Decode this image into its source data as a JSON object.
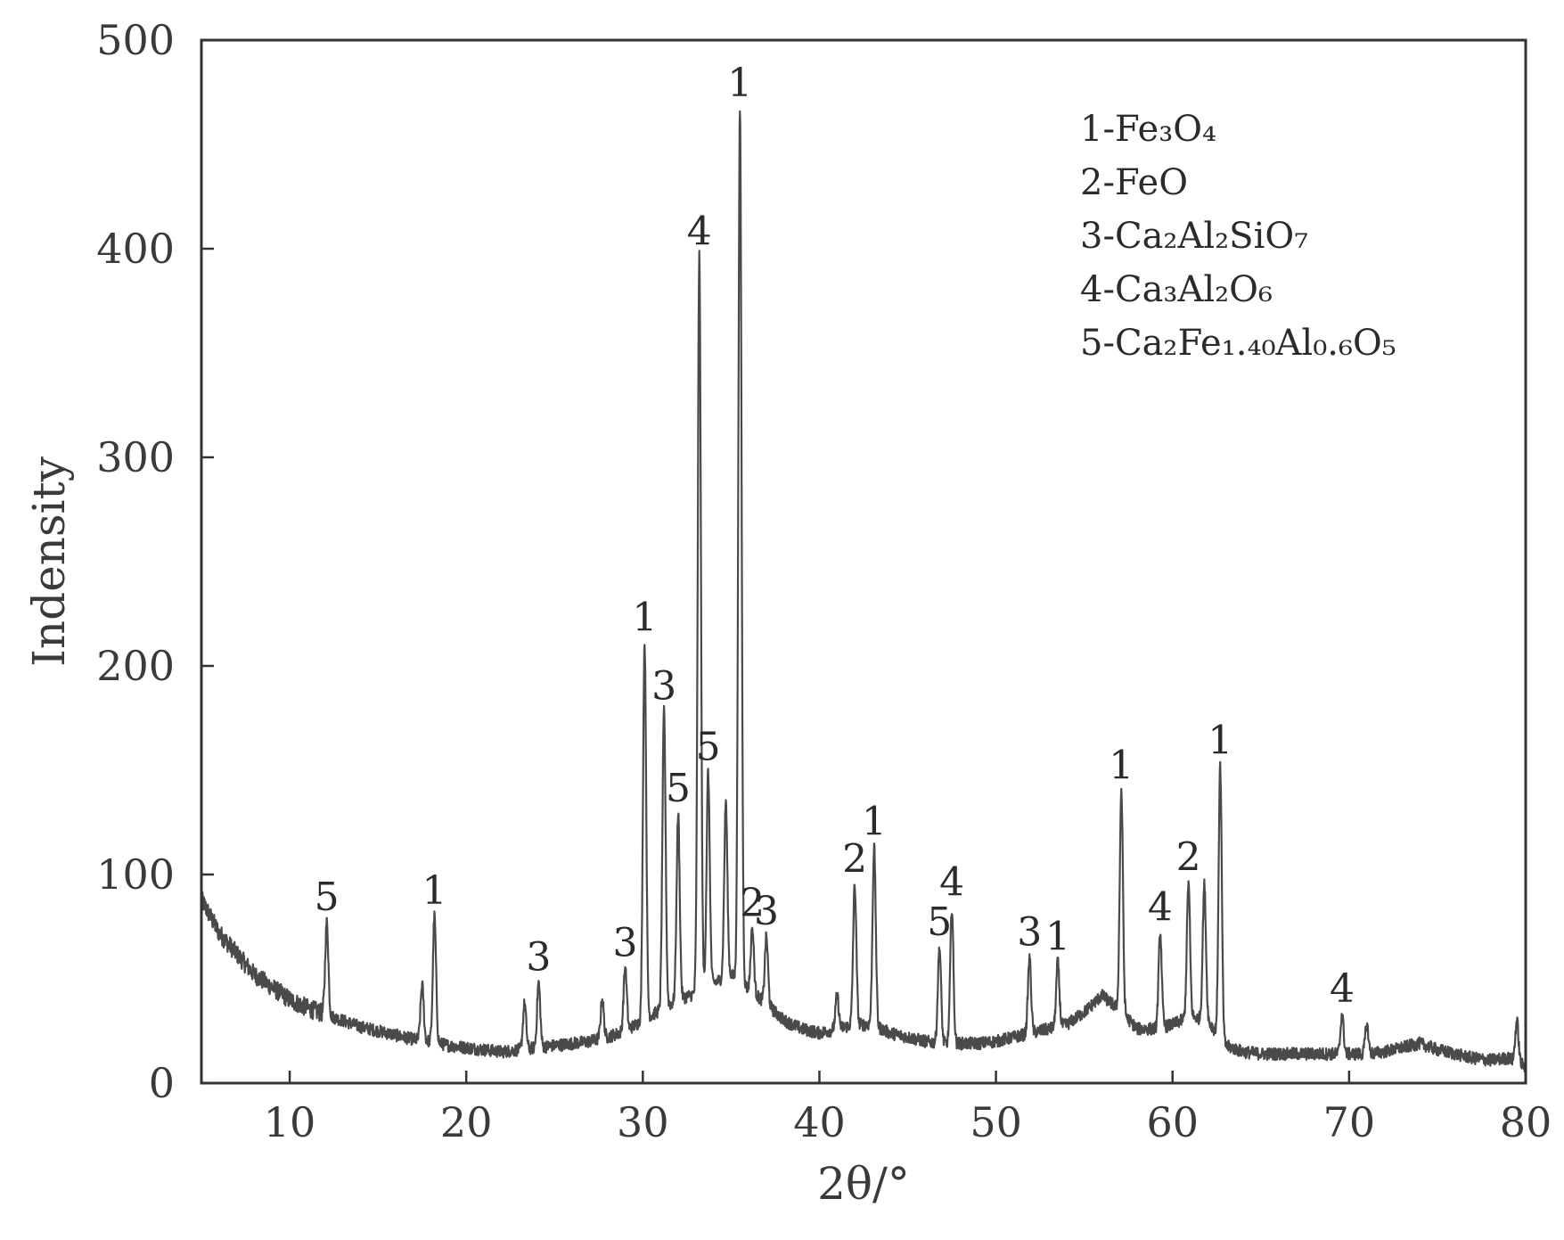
{
  "chart_data": {
    "type": "line",
    "title": "",
    "xlabel": "2θ/°",
    "ylabel": "Indensity",
    "xlim": [
      5,
      80
    ],
    "ylim": [
      0,
      500
    ],
    "x_ticks": [
      10,
      20,
      30,
      40,
      50,
      60,
      70,
      80
    ],
    "y_ticks": [
      0,
      100,
      200,
      300,
      400,
      500
    ],
    "grid": false,
    "legend_position": "top-right",
    "legend": [
      {
        "id": "1",
        "text": "1-Fe₃O₄"
      },
      {
        "id": "2",
        "text": "2-FeO"
      },
      {
        "id": "3",
        "text": "3-Ca₂Al₂SiO₇"
      },
      {
        "id": "4",
        "text": "4-Ca₃Al₂O₆"
      },
      {
        "id": "5",
        "text": "5-Ca₂Fe₁.₄₀Al₀.₆O₅"
      }
    ],
    "line_color": "#4a4a4a",
    "background_points": [
      [
        5,
        88
      ],
      [
        6,
        72
      ],
      [
        7,
        62
      ],
      [
        8,
        52
      ],
      [
        9,
        46
      ],
      [
        10,
        40
      ],
      [
        11,
        36
      ],
      [
        12,
        33
      ],
      [
        13,
        30
      ],
      [
        14,
        27
      ],
      [
        15,
        25
      ],
      [
        16,
        23
      ],
      [
        17,
        21
      ],
      [
        18,
        20
      ],
      [
        19,
        18
      ],
      [
        20,
        17
      ],
      [
        21,
        16
      ],
      [
        22,
        15
      ],
      [
        23,
        16
      ],
      [
        24,
        17
      ],
      [
        25,
        18
      ],
      [
        26,
        19
      ],
      [
        27,
        20
      ],
      [
        28,
        22
      ],
      [
        29,
        25
      ],
      [
        30,
        30
      ],
      [
        31,
        35
      ],
      [
        32,
        40
      ],
      [
        33,
        43
      ],
      [
        34,
        48
      ],
      [
        35,
        52
      ],
      [
        36,
        45
      ],
      [
        37,
        38
      ],
      [
        38,
        30
      ],
      [
        39,
        26
      ],
      [
        40,
        24
      ],
      [
        41,
        26
      ],
      [
        42,
        28
      ],
      [
        43,
        28
      ],
      [
        44,
        24
      ],
      [
        45,
        22
      ],
      [
        46,
        20
      ],
      [
        47,
        19
      ],
      [
        48,
        19
      ],
      [
        49,
        19
      ],
      [
        50,
        20
      ],
      [
        51,
        22
      ],
      [
        52,
        24
      ],
      [
        53,
        26
      ],
      [
        54,
        28
      ],
      [
        55,
        34
      ],
      [
        56,
        42
      ],
      [
        57,
        35
      ],
      [
        58,
        26
      ],
      [
        59,
        26
      ],
      [
        60,
        28
      ],
      [
        61,
        32
      ],
      [
        62,
        30
      ],
      [
        63,
        18
      ],
      [
        64,
        15
      ],
      [
        65,
        14
      ],
      [
        66,
        14
      ],
      [
        67,
        14
      ],
      [
        68,
        14
      ],
      [
        69,
        14
      ],
      [
        70,
        14
      ],
      [
        71,
        14
      ],
      [
        72,
        15
      ],
      [
        73,
        17
      ],
      [
        74,
        19
      ],
      [
        75,
        16
      ],
      [
        76,
        14
      ],
      [
        77,
        12
      ],
      [
        78,
        11
      ],
      [
        79,
        12
      ],
      [
        80,
        8
      ]
    ],
    "peaks": [
      {
        "x": 12.1,
        "y": 77,
        "label": "5"
      },
      {
        "x": 18.2,
        "y": 80,
        "label": "1"
      },
      {
        "x": 17.5,
        "y": 47,
        "label": ""
      },
      {
        "x": 23.3,
        "y": 38,
        "label": ""
      },
      {
        "x": 24.1,
        "y": 48,
        "label": "3"
      },
      {
        "x": 27.7,
        "y": 40,
        "label": ""
      },
      {
        "x": 29.0,
        "y": 55,
        "label": "3"
      },
      {
        "x": 30.1,
        "y": 211,
        "label": "1"
      },
      {
        "x": 31.2,
        "y": 178,
        "label": "3"
      },
      {
        "x": 32.0,
        "y": 129,
        "label": "5"
      },
      {
        "x": 33.2,
        "y": 396,
        "label": "4"
      },
      {
        "x": 33.7,
        "y": 149,
        "label": "5"
      },
      {
        "x": 34.7,
        "y": 135,
        "label": ""
      },
      {
        "x": 35.5,
        "y": 467,
        "label": "1"
      },
      {
        "x": 36.2,
        "y": 74,
        "label": "2"
      },
      {
        "x": 37.0,
        "y": 70,
        "label": "3"
      },
      {
        "x": 41.0,
        "y": 42,
        "label": ""
      },
      {
        "x": 42.0,
        "y": 95,
        "label": "2"
      },
      {
        "x": 43.1,
        "y": 113,
        "label": "1"
      },
      {
        "x": 46.8,
        "y": 65,
        "label": "5"
      },
      {
        "x": 47.5,
        "y": 84,
        "label": "4"
      },
      {
        "x": 51.9,
        "y": 60,
        "label": "3"
      },
      {
        "x": 53.5,
        "y": 58,
        "label": "1"
      },
      {
        "x": 57.1,
        "y": 140,
        "label": "1"
      },
      {
        "x": 59.3,
        "y": 72,
        "label": "4"
      },
      {
        "x": 60.9,
        "y": 96,
        "label": "2"
      },
      {
        "x": 61.8,
        "y": 95,
        "label": ""
      },
      {
        "x": 62.7,
        "y": 152,
        "label": "1"
      },
      {
        "x": 69.6,
        "y": 33,
        "label": "4"
      },
      {
        "x": 71.0,
        "y": 28,
        "label": ""
      },
      {
        "x": 79.5,
        "y": 30,
        "label": ""
      }
    ]
  }
}
